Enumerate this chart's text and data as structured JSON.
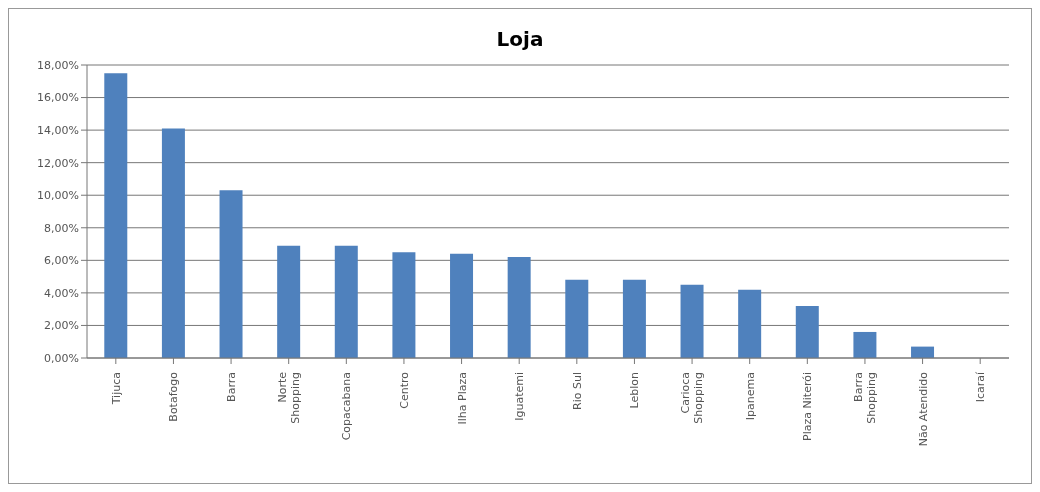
{
  "chart_data": {
    "type": "bar",
    "title": "Loja",
    "categories": [
      "Tijuca",
      "Botafogo",
      "Barra",
      "Norte\nShopping",
      "Copacabana",
      "Centro",
      "Ilha Plaza",
      "Iguatemi",
      "Rio Sul",
      "Leblon",
      "Carioca\nShopping",
      "Ipanema",
      "Plaza Niterói",
      "Barra\nShopping",
      "Não Atendido",
      "Icaraí"
    ],
    "values": [
      17.5,
      14.1,
      10.3,
      6.9,
      6.9,
      6.5,
      6.4,
      6.2,
      4.8,
      4.8,
      4.5,
      4.2,
      3.2,
      1.6,
      0.7,
      0
    ],
    "color": "#4f81bd",
    "ylim": [
      0,
      18
    ],
    "yticks": [
      {
        "value": 0,
        "label": "0,00%"
      },
      {
        "value": 2,
        "label": "2,00%"
      },
      {
        "value": 4,
        "label": "4,00%"
      },
      {
        "value": 6,
        "label": "6,00%"
      },
      {
        "value": 8,
        "label": "8,00%"
      },
      {
        "value": 10,
        "label": "10,00%"
      },
      {
        "value": 12,
        "label": "12,00%"
      },
      {
        "value": 14,
        "label": "14,00%"
      },
      {
        "value": 16,
        "label": "16,00%"
      },
      {
        "value": 18,
        "label": "18,00%"
      }
    ],
    "grid": "y"
  }
}
